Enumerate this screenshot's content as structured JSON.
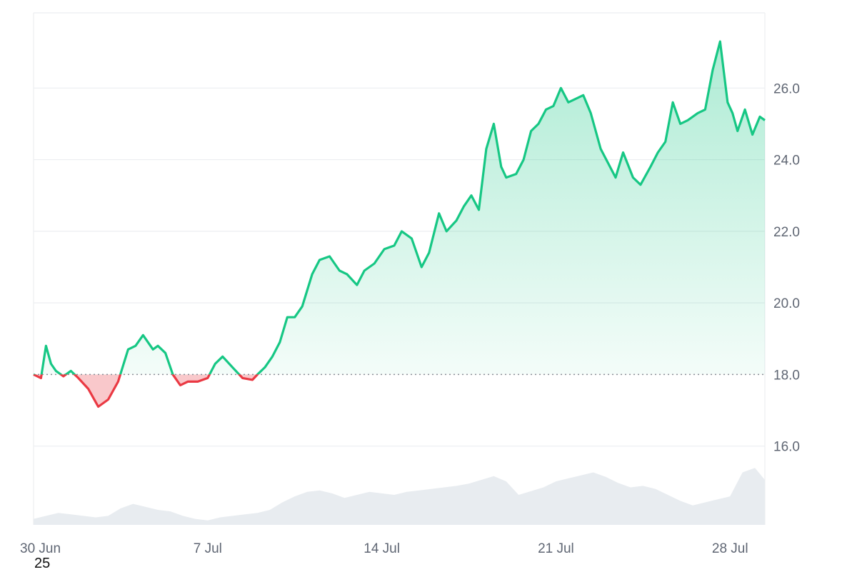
{
  "chart_data": {
    "type": "line",
    "x_ticks": [
      "30 Jun",
      "7 Jul",
      "14 Jul",
      "21 Jul",
      "28 Jul"
    ],
    "x_tick_days": [
      0,
      7,
      14,
      21,
      28
    ],
    "x_range_days": [
      0,
      29.4
    ],
    "year_label": "25",
    "y_ticks": [
      "16.0",
      "18.0",
      "20.0",
      "22.0",
      "24.0",
      "26.0"
    ],
    "y_tick_values": [
      16,
      18,
      20,
      22,
      24,
      26
    ],
    "ylim": [
      13.8,
      28.1
    ],
    "baseline": 18.0,
    "grid": true,
    "colors": {
      "up": "#16c784",
      "down": "#ea3943",
      "volume": "#e8ecf0",
      "grid": "#eceef1",
      "baseline": "#8a8f98"
    },
    "series": [
      {
        "values_x": [
          0,
          0.3,
          0.5,
          0.7,
          0.9,
          1.2,
          1.5,
          1.8,
          2.2,
          2.6,
          3.0,
          3.4,
          3.8,
          4.1,
          4.4,
          4.8,
          5.0,
          5.3,
          5.6,
          5.9,
          6.2,
          6.6,
          7.0,
          7.3,
          7.6,
          8.0,
          8.4,
          8.8,
          9.0,
          9.3,
          9.6,
          9.9,
          10.2,
          10.5,
          10.8,
          11.2,
          11.5,
          11.9,
          12.3,
          12.6,
          13.0,
          13.3,
          13.7,
          14.1,
          14.5,
          14.8,
          15.2,
          15.6,
          15.9,
          16.3,
          16.6,
          17.0,
          17.3,
          17.6,
          17.9,
          18.2,
          18.5,
          18.8,
          19.0,
          19.4,
          19.7,
          20.0,
          20.3,
          20.6,
          20.9,
          21.2,
          21.5,
          21.8,
          22.1,
          22.4,
          22.8,
          23.1,
          23.4,
          23.7,
          24.1,
          24.4,
          24.8,
          25.1,
          25.4,
          25.7,
          26.0,
          26.3,
          26.7,
          27.0,
          27.3,
          27.6,
          27.9,
          28.1,
          28.3,
          28.6,
          28.9,
          29.2,
          29.4
        ],
        "values_y": [
          18.0,
          17.9,
          18.8,
          18.3,
          18.1,
          17.95,
          18.1,
          17.9,
          17.6,
          17.1,
          17.3,
          17.8,
          18.7,
          18.8,
          19.1,
          18.7,
          18.8,
          18.6,
          18.0,
          17.7,
          17.8,
          17.8,
          17.9,
          18.3,
          18.5,
          18.2,
          17.9,
          17.85,
          18.0,
          18.2,
          18.5,
          18.9,
          19.6,
          19.6,
          19.9,
          20.8,
          21.2,
          21.3,
          20.9,
          20.8,
          20.5,
          20.9,
          21.1,
          21.5,
          21.6,
          22.0,
          21.8,
          21.0,
          21.4,
          22.5,
          22.0,
          22.3,
          22.7,
          23.0,
          22.6,
          24.3,
          25.0,
          23.8,
          23.5,
          23.6,
          24.0,
          24.8,
          25.0,
          25.4,
          25.5,
          26.0,
          25.6,
          25.7,
          25.8,
          25.3,
          24.3,
          23.9,
          23.5,
          24.2,
          23.5,
          23.3,
          23.8,
          24.2,
          24.5,
          25.6,
          25.0,
          25.1,
          25.3,
          25.4,
          26.5,
          27.3,
          25.6,
          25.3,
          24.8,
          25.4,
          24.7,
          25.2,
          25.1
        ]
      }
    ],
    "volume": {
      "values_x": [
        0,
        0.5,
        1.0,
        1.5,
        2.0,
        2.5,
        3.0,
        3.5,
        4.0,
        4.5,
        5.0,
        5.5,
        6.0,
        6.5,
        7.0,
        7.5,
        8.0,
        8.5,
        9.0,
        9.5,
        10.0,
        10.5,
        11.0,
        11.5,
        12.0,
        12.5,
        13.0,
        13.5,
        14.0,
        14.5,
        15.0,
        15.5,
        16.0,
        16.5,
        17.0,
        17.5,
        18.0,
        18.5,
        19.0,
        19.5,
        20.0,
        20.5,
        21.0,
        21.5,
        22.0,
        22.5,
        23.0,
        23.5,
        24.0,
        24.5,
        25.0,
        25.5,
        26.0,
        26.5,
        27.0,
        27.5,
        28.0,
        28.5,
        29.0,
        29.4
      ],
      "values": [
        0.08,
        0.12,
        0.16,
        0.14,
        0.12,
        0.1,
        0.12,
        0.22,
        0.28,
        0.24,
        0.2,
        0.18,
        0.12,
        0.08,
        0.06,
        0.1,
        0.12,
        0.14,
        0.16,
        0.2,
        0.3,
        0.38,
        0.44,
        0.46,
        0.42,
        0.36,
        0.4,
        0.44,
        0.42,
        0.4,
        0.44,
        0.46,
        0.48,
        0.5,
        0.52,
        0.55,
        0.6,
        0.65,
        0.58,
        0.4,
        0.45,
        0.5,
        0.58,
        0.62,
        0.66,
        0.7,
        0.64,
        0.56,
        0.5,
        0.52,
        0.48,
        0.4,
        0.32,
        0.26,
        0.3,
        0.34,
        0.38,
        0.7,
        0.76,
        0.6
      ]
    }
  }
}
